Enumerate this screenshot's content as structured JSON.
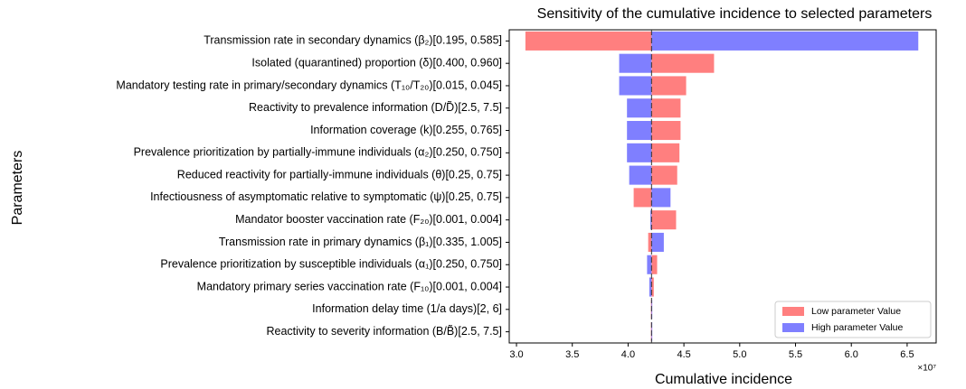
{
  "chart_data": {
    "type": "tornado",
    "title": "Sensitivity of the cumulative incidence to selected parameters",
    "x_label": "Cumulative incidence",
    "y_label": "Parameters",
    "x_offset_label": "×10⁷",
    "base": 4.21,
    "categories": [
      "Transmission rate in secondary dynamics (β₂)[0.195, 0.585]",
      "Isolated (quarantined) proportion (δ)[0.400, 0.960]",
      "Mandatory testing rate in primary/secondary dynamics (T₁₀/T₂₀)[0.015, 0.045]",
      "Reactivity to prevalence information (D/D̃)[2.5, 7.5]",
      "Information coverage (k)[0.255, 0.765]",
      "Prevalence prioritization by partially-immune individuals (α₂)[0.250, 0.750]",
      "Reduced reactivity for partially-immune individuals (θ)[0.25, 0.75]",
      "Infectiousness of asymptomatic relative to symptomatic (ψ)[0.25, 0.75]",
      "Mandator booster vaccination rate (F₂₀)[0.001, 0.004]",
      "Transmission rate in primary dynamics (β₁)[0.335, 1.005]",
      "Prevalence prioritization by susceptible individuals (α₁)[0.250, 0.750]",
      "Mandatory primary series vaccination rate (F₁₀)[0.001, 0.004]",
      "Information delay time (1/a days)[2, 6]",
      "Reactivity to severity information (B/B̃)[2.5, 7.5]"
    ],
    "series": [
      {
        "name": "Low parameter Value",
        "color": "#ff7f7f",
        "values": [
          3.08,
          4.77,
          4.52,
          4.47,
          4.47,
          4.46,
          4.44,
          4.05,
          4.43,
          4.18,
          4.26,
          4.23,
          4.205,
          4.205
        ]
      },
      {
        "name": "High parameter Value",
        "color": "#7f7fff",
        "values": [
          6.6,
          3.92,
          3.92,
          3.99,
          3.99,
          3.99,
          4.01,
          4.38,
          4.2,
          4.32,
          4.17,
          4.19,
          4.215,
          4.215
        ]
      }
    ],
    "xlim": [
      2.935,
      6.76
    ],
    "xticks": [
      {
        "value": 3,
        "label": "3.0"
      },
      3.5,
      {
        "value": 4,
        "label": "4.0"
      },
      4.5,
      {
        "value": 5,
        "label": "5.0"
      },
      5.5,
      {
        "value": 6,
        "label": "6.0"
      },
      6.5
    ],
    "legend": "lower right"
  }
}
